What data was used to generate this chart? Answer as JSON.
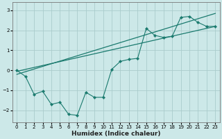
{
  "xlabel": "Humidex (Indice chaleur)",
  "ylabel": "",
  "bg_color": "#cce8e8",
  "grid_color": "#aacccc",
  "line_color": "#1a7a6e",
  "xlim": [
    -0.5,
    23.5
  ],
  "ylim": [
    -2.6,
    3.4
  ],
  "xticks": [
    0,
    1,
    2,
    3,
    4,
    5,
    6,
    7,
    8,
    9,
    10,
    11,
    12,
    13,
    14,
    15,
    16,
    17,
    18,
    19,
    20,
    21,
    22,
    23
  ],
  "yticks": [
    -2,
    -1,
    0,
    1,
    2,
    3
  ],
  "series1_x": [
    0,
    1,
    2,
    3,
    4,
    5,
    6,
    7,
    8,
    9,
    10,
    11,
    12,
    13,
    14,
    15,
    16,
    17,
    18,
    19,
    20,
    21,
    22,
    23
  ],
  "series1_y": [
    0.0,
    -0.3,
    -1.2,
    -1.05,
    -1.7,
    -1.6,
    -2.2,
    -2.25,
    -1.1,
    -1.35,
    -1.35,
    0.05,
    0.45,
    0.55,
    0.6,
    2.1,
    1.75,
    1.65,
    1.7,
    2.65,
    2.7,
    2.4,
    2.2,
    2.2
  ],
  "series2_x": [
    0,
    23
  ],
  "series2_y": [
    -0.2,
    2.85
  ],
  "series3_x": [
    0,
    23
  ],
  "series3_y": [
    -0.05,
    2.2
  ]
}
